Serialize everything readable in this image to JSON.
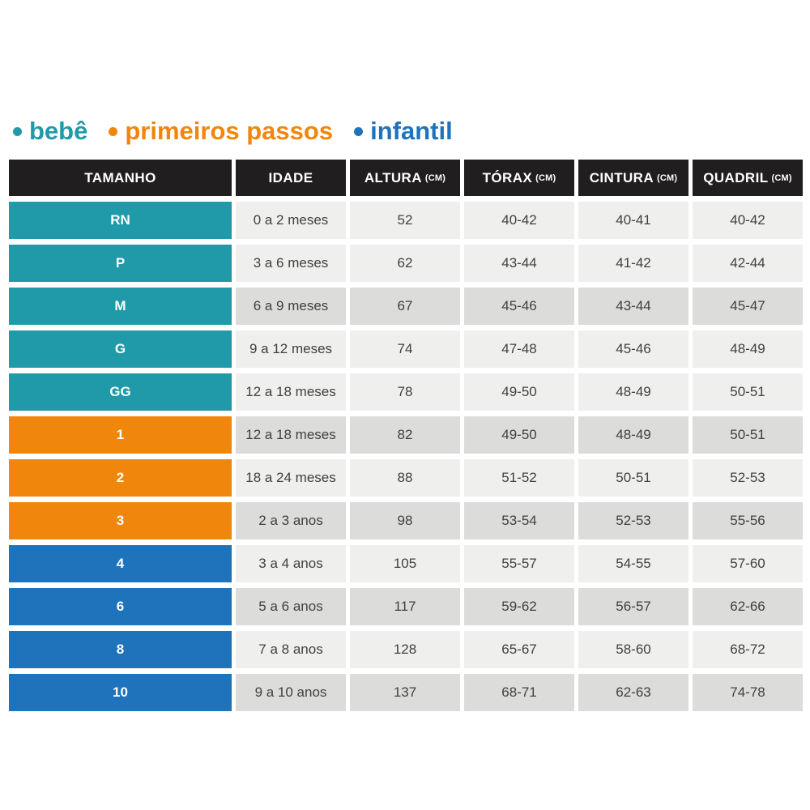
{
  "legend": {
    "items": [
      {
        "label": "bebê",
        "key": "bebe",
        "color": "#2099A8"
      },
      {
        "label": "primeiros passos",
        "key": "primeiros_passos",
        "color": "#F0860B"
      },
      {
        "label": "infantil",
        "key": "infantil",
        "color": "#1E73BB"
      }
    ]
  },
  "table": {
    "headers": [
      {
        "label": "TAMANHO",
        "unit": ""
      },
      {
        "label": "IDADE",
        "unit": ""
      },
      {
        "label": "ALTURA",
        "unit": "(CM)"
      },
      {
        "label": "TÓRAX",
        "unit": "(CM)"
      },
      {
        "label": "CINTURA",
        "unit": "(CM)"
      },
      {
        "label": "QUADRIL",
        "unit": "(CM)"
      }
    ],
    "rows": [
      {
        "size": "RN",
        "group": "bebe",
        "shade": "light",
        "idade": "0 a 2 meses",
        "altura": "52",
        "torax": "40-42",
        "cintura": "40-41",
        "quadril": "40-42"
      },
      {
        "size": "P",
        "group": "bebe",
        "shade": "light",
        "idade": "3 a 6 meses",
        "altura": "62",
        "torax": "43-44",
        "cintura": "41-42",
        "quadril": "42-44"
      },
      {
        "size": "M",
        "group": "bebe",
        "shade": "dark",
        "idade": "6 a 9 meses",
        "altura": "67",
        "torax": "45-46",
        "cintura": "43-44",
        "quadril": "45-47"
      },
      {
        "size": "G",
        "group": "bebe",
        "shade": "light",
        "idade": "9 a 12 meses",
        "altura": "74",
        "torax": "47-48",
        "cintura": "45-46",
        "quadril": "48-49"
      },
      {
        "size": "GG",
        "group": "bebe",
        "shade": "light",
        "idade": "12 a 18 meses",
        "altura": "78",
        "torax": "49-50",
        "cintura": "48-49",
        "quadril": "50-51"
      },
      {
        "size": "1",
        "group": "primeiros_passos",
        "shade": "dark",
        "idade": "12 a 18 meses",
        "altura": "82",
        "torax": "49-50",
        "cintura": "48-49",
        "quadril": "50-51"
      },
      {
        "size": "2",
        "group": "primeiros_passos",
        "shade": "light",
        "idade": "18 a 24 meses",
        "altura": "88",
        "torax": "51-52",
        "cintura": "50-51",
        "quadril": "52-53"
      },
      {
        "size": "3",
        "group": "primeiros_passos",
        "shade": "dark",
        "idade": "2 a 3 anos",
        "altura": "98",
        "torax": "53-54",
        "cintura": "52-53",
        "quadril": "55-56"
      },
      {
        "size": "4",
        "group": "infantil",
        "shade": "light",
        "idade": "3 a 4 anos",
        "altura": "105",
        "torax": "55-57",
        "cintura": "54-55",
        "quadril": "57-60"
      },
      {
        "size": "6",
        "group": "infantil",
        "shade": "dark",
        "idade": "5 a 6 anos",
        "altura": "117",
        "torax": "59-62",
        "cintura": "56-57",
        "quadril": "62-66"
      },
      {
        "size": "8",
        "group": "infantil",
        "shade": "light",
        "idade": "7 a 8 anos",
        "altura": "128",
        "torax": "65-67",
        "cintura": "58-60",
        "quadril": "68-72"
      },
      {
        "size": "10",
        "group": "infantil",
        "shade": "dark",
        "idade": "9 a 10 anos",
        "altura": "137",
        "torax": "68-71",
        "cintura": "62-63",
        "quadril": "74-78"
      }
    ]
  },
  "colors": {
    "header_bg": "#211E1F",
    "row_light": "#EFEFED",
    "row_dark": "#DCDCDA",
    "cell_text": "#414042",
    "groups": {
      "bebe": "#2099A8",
      "primeiros_passos": "#F0860B",
      "infantil": "#1E73BB"
    }
  },
  "chart_data": {
    "type": "table",
    "title": "",
    "columns": [
      "TAMANHO",
      "IDADE",
      "ALTURA (CM)",
      "TÓRAX (CM)",
      "CINTURA (CM)",
      "QUADRIL (CM)"
    ],
    "rows": [
      [
        "RN",
        "0 a 2 meses",
        "52",
        "40-42",
        "40-41",
        "40-42"
      ],
      [
        "P",
        "3 a 6 meses",
        "62",
        "43-44",
        "41-42",
        "42-44"
      ],
      [
        "M",
        "6 a 9 meses",
        "67",
        "45-46",
        "43-44",
        "45-47"
      ],
      [
        "G",
        "9 a 12 meses",
        "74",
        "47-48",
        "45-46",
        "48-49"
      ],
      [
        "GG",
        "12 a 18 meses",
        "78",
        "49-50",
        "48-49",
        "50-51"
      ],
      [
        "1",
        "12 a 18 meses",
        "82",
        "49-50",
        "48-49",
        "50-51"
      ],
      [
        "2",
        "18 a 24 meses",
        "88",
        "51-52",
        "50-51",
        "52-53"
      ],
      [
        "3",
        "2 a 3 anos",
        "98",
        "53-54",
        "52-53",
        "55-56"
      ],
      [
        "4",
        "3 a 4 anos",
        "105",
        "55-57",
        "54-55",
        "57-60"
      ],
      [
        "6",
        "5 a 6 anos",
        "117",
        "59-62",
        "56-57",
        "62-66"
      ],
      [
        "8",
        "7 a 8 anos",
        "128",
        "65-67",
        "58-60",
        "68-72"
      ],
      [
        "10",
        "9 a 10 anos",
        "137",
        "68-71",
        "62-63",
        "74-78"
      ]
    ],
    "legend_groups": [
      {
        "label": "bebê",
        "sizes": [
          "RN",
          "P",
          "M",
          "G",
          "GG"
        ]
      },
      {
        "label": "primeiros passos",
        "sizes": [
          "1",
          "2",
          "3"
        ]
      },
      {
        "label": "infantil",
        "sizes": [
          "4",
          "6",
          "8",
          "10"
        ]
      }
    ]
  }
}
